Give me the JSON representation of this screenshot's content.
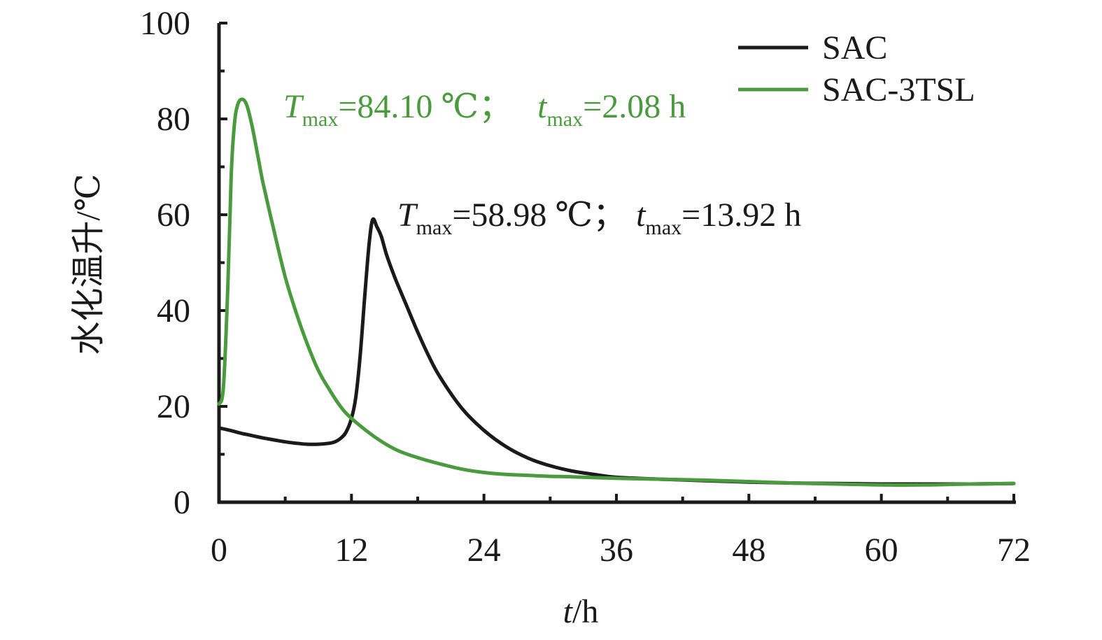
{
  "chart_data": {
    "type": "line",
    "xlabel_var": "t",
    "xlabel_unit": "/h",
    "ylabel": "水化温升/℃",
    "xlim": [
      0,
      72
    ],
    "ylim": [
      0,
      100
    ],
    "x_ticks": [
      0,
      12,
      24,
      36,
      48,
      60,
      72
    ],
    "y_ticks": [
      0,
      20,
      40,
      60,
      80,
      100
    ],
    "grid": false,
    "legend_position": "top-right",
    "series": [
      {
        "name": "SAC",
        "color": "#1a1a1a",
        "x": [
          0,
          1,
          2,
          3,
          4,
          5,
          6,
          7,
          8,
          9,
          10,
          10.5,
          11,
          11.5,
          12,
          12.4,
          12.8,
          13.2,
          13.6,
          13.92,
          14.3,
          14.7,
          15.2,
          16,
          17,
          18,
          19,
          20,
          22,
          24,
          26,
          28,
          30,
          32,
          34,
          36,
          40,
          44,
          48,
          52,
          56,
          60,
          64,
          68,
          72
        ],
        "y": [
          15.5,
          15.0,
          14.4,
          13.9,
          13.4,
          13.0,
          12.6,
          12.3,
          12.1,
          12.1,
          12.3,
          12.6,
          13.3,
          14.6,
          17.5,
          22.0,
          31.0,
          43.0,
          54.0,
          58.98,
          57.5,
          55.5,
          51.5,
          46.5,
          41.0,
          35.5,
          30.5,
          26.2,
          19.6,
          15.0,
          11.6,
          9.2,
          7.6,
          6.5,
          5.8,
          5.2,
          4.8,
          4.5,
          4.2,
          4.0,
          3.9,
          3.8,
          3.8,
          3.8,
          3.9
        ]
      },
      {
        "name": "SAC-3TSL",
        "color": "#4a9a3e",
        "x": [
          0,
          0.4,
          0.8,
          1.1,
          1.4,
          1.7,
          2.08,
          2.5,
          3,
          3.5,
          4,
          5,
          6,
          7,
          8,
          9,
          10,
          11,
          12,
          14,
          16,
          18,
          20,
          22,
          24,
          26,
          28,
          30,
          32,
          36,
          40,
          44,
          48,
          52,
          56,
          60,
          64,
          68,
          72
        ],
        "y": [
          20.5,
          24.0,
          45.0,
          68.0,
          79.0,
          83.0,
          84.1,
          83.0,
          78.5,
          72.5,
          66.5,
          56.5,
          47.0,
          39.5,
          33.0,
          27.5,
          23.5,
          20.0,
          17.5,
          13.8,
          11.0,
          9.3,
          8.0,
          6.9,
          6.2,
          5.8,
          5.6,
          5.4,
          5.3,
          5.0,
          4.8,
          4.6,
          4.3,
          4.0,
          3.8,
          3.6,
          3.6,
          3.8,
          3.9
        ]
      }
    ],
    "annotations": [
      {
        "series": "SAC-3TSL",
        "T_var": "T",
        "T_sub": "max",
        "T_value": "=84.10 ℃；",
        "t_var": "t",
        "t_sub": "max",
        "t_value": "=2.08 h",
        "color": "#4a9a3e"
      },
      {
        "series": "SAC",
        "T_var": "T",
        "T_sub": "max",
        "T_value": "=58.98 ℃；",
        "t_var": "t",
        "t_sub": "max",
        "t_value": "=13.92 h",
        "color": "#1a1a1a"
      }
    ]
  }
}
